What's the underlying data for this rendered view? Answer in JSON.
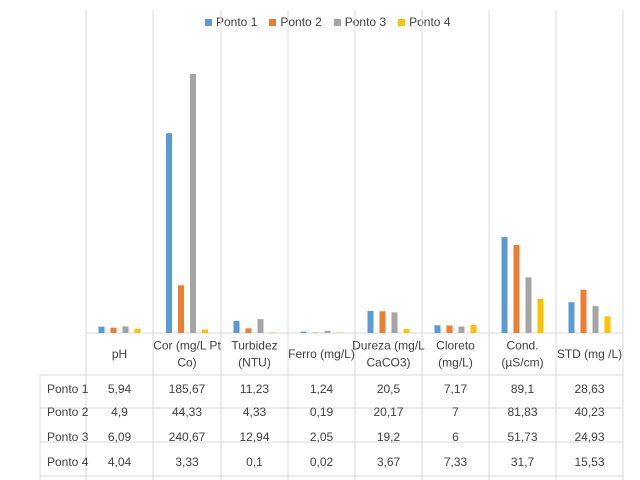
{
  "chart_data": {
    "type": "bar",
    "title": "",
    "xlabel": "",
    "ylabel": "",
    "categories": [
      "pH",
      "Cor (mg/L Pt Co)",
      "Turbidez (NTU)",
      "Ferro (mg/L)",
      "Dureza (mg/L CaCO3)",
      "Cloreto (mg/L)",
      "Cond. (µS/cm)",
      "STD (mg /L)"
    ],
    "category_lines": [
      [
        "pH"
      ],
      [
        "Cor (mg/L Pt",
        "Co)"
      ],
      [
        "Turbidez",
        "(NTU)"
      ],
      [
        "Ferro (mg/L)"
      ],
      [
        "Dureza (mg/L",
        "CaCO3)"
      ],
      [
        "Cloreto",
        "(mg/L)"
      ],
      [
        "Cond.",
        "(µS/cm)"
      ],
      [
        "STD (mg /L)"
      ]
    ],
    "series": [
      {
        "name": "Ponto 1",
        "color": "#5B9BD5",
        "values": [
          5.94,
          185.67,
          11.23,
          1.24,
          20.5,
          7.17,
          89.1,
          28.63
        ],
        "labels": [
          "5,94",
          "185,67",
          "11,23",
          "1,24",
          "20,5",
          "7,17",
          "89,1",
          "28,63"
        ]
      },
      {
        "name": "Ponto 2",
        "color": "#ED7D31",
        "values": [
          4.9,
          44.33,
          4.33,
          0.19,
          20.17,
          7,
          81.83,
          40.23
        ],
        "labels": [
          "4,9",
          "44,33",
          "4,33",
          "0,19",
          "20,17",
          "7",
          "81,83",
          "40,23"
        ]
      },
      {
        "name": "Ponto 3",
        "color": "#A5A5A5",
        "values": [
          6.09,
          240.67,
          12.94,
          2.05,
          19.2,
          6,
          51.73,
          24.93
        ],
        "labels": [
          "6,09",
          "240,67",
          "12,94",
          "2,05",
          "19,2",
          "6",
          "51,73",
          "24,93"
        ]
      },
      {
        "name": "Ponto 4",
        "color": "#FFC000",
        "values": [
          4.04,
          3.33,
          0.1,
          0.02,
          3.67,
          7.33,
          31.7,
          15.53
        ],
        "labels": [
          "4,04",
          "3,33",
          "0,1",
          "0,02",
          "3,67",
          "7,33",
          "31,7",
          "15,53"
        ]
      }
    ],
    "ylim": [
      0,
      240.67
    ],
    "legend": "top-center",
    "data_table": true
  }
}
